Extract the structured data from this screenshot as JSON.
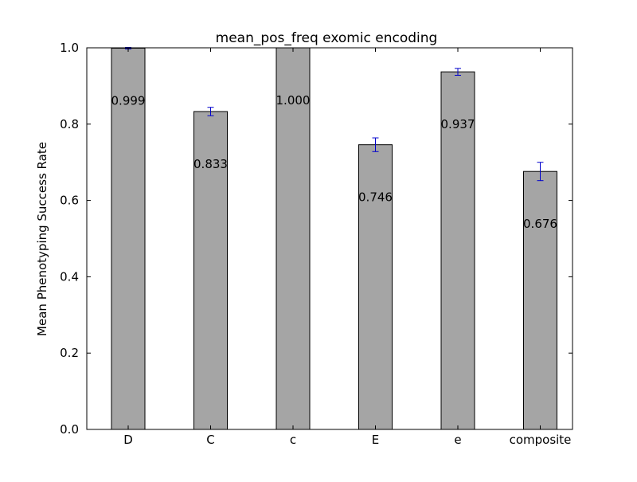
{
  "chart_data": {
    "type": "bar",
    "title": "mean_pos_freq exomic encoding",
    "xlabel": "",
    "ylabel": "Mean Phenotyping Success Rate",
    "categories": [
      "D",
      "C",
      "c",
      "E",
      "e",
      "composite"
    ],
    "values": [
      0.999,
      0.833,
      1.0,
      0.746,
      0.937,
      0.676
    ],
    "value_labels": [
      "0.999",
      "0.833",
      "1.000",
      "0.746",
      "0.937",
      "0.676"
    ],
    "errors": [
      0.002,
      0.011,
      0.0,
      0.018,
      0.009,
      0.024
    ],
    "ylim": [
      0,
      1.0
    ],
    "yticks": [
      0.0,
      0.2,
      0.4,
      0.6,
      0.8,
      1.0
    ],
    "ytick_labels": [
      "0.0",
      "0.2",
      "0.4",
      "0.6",
      "0.8",
      "1.0"
    ],
    "grid": false,
    "legend": "none",
    "colors": {
      "bar": "#a5a5a5",
      "bar_edge": "#000000",
      "error": "#0000cc",
      "axes": "#000000"
    }
  }
}
